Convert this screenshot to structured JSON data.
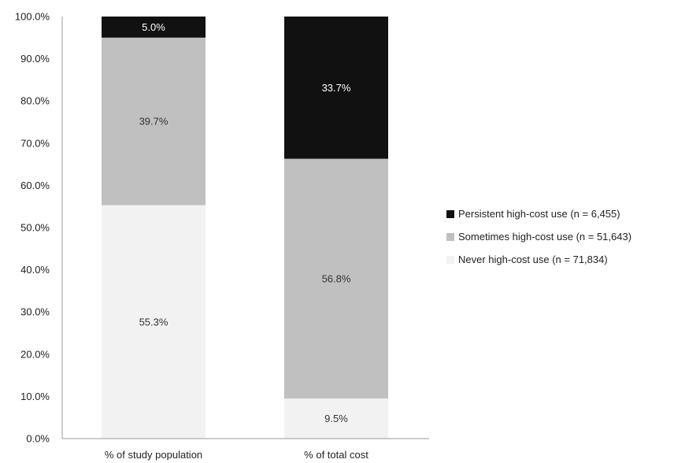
{
  "chart_data": {
    "type": "bar",
    "stacked": true,
    "categories": [
      "% of study population",
      "% of total cost"
    ],
    "series": [
      {
        "name": "Never high-cost use (n = 71,834)",
        "values": [
          55.3,
          9.5
        ],
        "labels": [
          "55.3%",
          "9.5%"
        ],
        "color": "#f2f2f2",
        "label_color": "#333333"
      },
      {
        "name": "Sometimes high-cost use (n = 51,643)",
        "values": [
          39.7,
          56.8
        ],
        "labels": [
          "39.7%",
          "56.8%"
        ],
        "color": "#c0c0c0",
        "label_color": "#333333"
      },
      {
        "name": "Persistent high-cost use (n = 6,455)",
        "values": [
          5.0,
          33.7
        ],
        "labels": [
          "5.0%",
          "33.7%"
        ],
        "color": "#111111",
        "label_color": "#ffffff"
      }
    ],
    "yticks": [
      "0.0%",
      "10.0%",
      "20.0%",
      "30.0%",
      "40.0%",
      "50.0%",
      "60.0%",
      "70.0%",
      "80.0%",
      "90.0%",
      "100.0%"
    ],
    "ylim": [
      0,
      100
    ],
    "legend_order": [
      2,
      1,
      0
    ],
    "legend_position": "right",
    "grid": false,
    "axis_color": "#999999"
  }
}
